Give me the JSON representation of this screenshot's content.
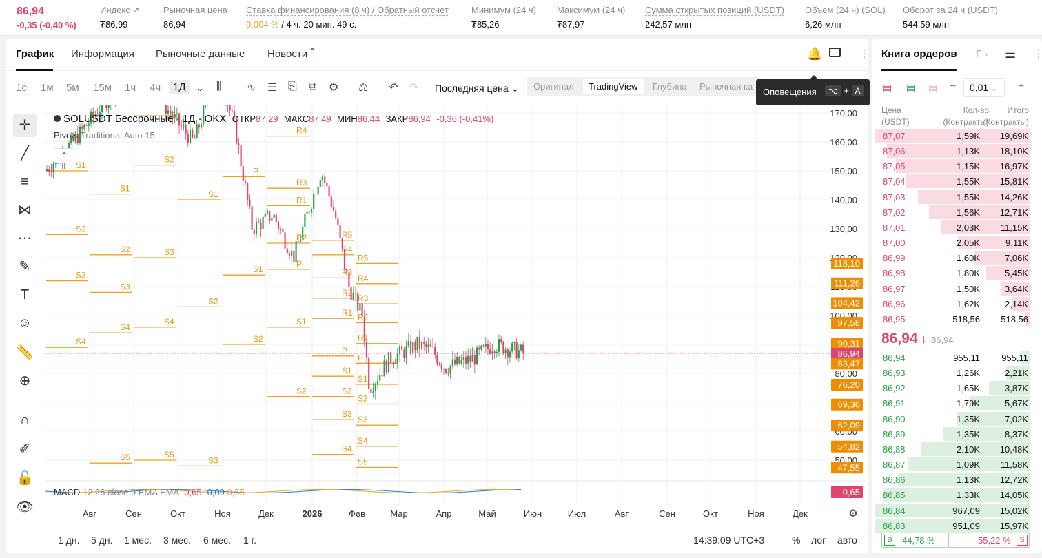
{
  "ticker": {
    "last_price": "86,94",
    "change": "-0,35 (-0,40 %)",
    "stats": [
      {
        "label": "Индекс",
        "value": "₮86,99",
        "icon": "external-link-icon"
      },
      {
        "label": "Рыночная цена",
        "value": "86,94"
      },
      {
        "label": "Ставка финансирования (8 ч) / Обратный отсчет",
        "value_accent": "0,004 %",
        "value": " / 4 ч. 20 мин. 49 с."
      },
      {
        "label": "Минимум (24 ч)",
        "value": "₮85,26"
      },
      {
        "label": "Максимум (24 ч)",
        "value": "₮87,97"
      },
      {
        "label": "Сумма открытых позиций (USDT)",
        "value": "242,57 млн"
      },
      {
        "label": "Объем (24 ч) (SOL)",
        "value": "6,26 млн"
      },
      {
        "label": "Оборот за 24 ч (USDT)",
        "value": "544,59 млн"
      }
    ]
  },
  "tabs": [
    "График",
    "Информация",
    "Рыночные данные",
    "Новости"
  ],
  "toolbar": {
    "timeframes": [
      "1с",
      "1м",
      "5м",
      "15м",
      "1ч",
      "4ч",
      "1Д"
    ],
    "active_timeframe": "1Д",
    "price_type": "Последняя цена",
    "views": [
      "Оригинал",
      "TradingView",
      "Глубина",
      "Рыночная ка"
    ],
    "active_view": "TradingView"
  },
  "tooltip": {
    "text": "Оповещения",
    "k1": "⌥",
    "plus": "+",
    "k2": "A"
  },
  "legend": {
    "symbol": "SOLUSDT Бессрочные · 1Д · OKX",
    "open_label": "ОТКР",
    "open": "87,29",
    "high_label": "МАКС",
    "high": "87,49",
    "low_label": "МИН",
    "low": "86,44",
    "close_label": "ЗАКР",
    "close": "86,94",
    "change": "-0,36 (-0,41%)"
  },
  "indicator": {
    "name": "Pivots",
    "params": "Traditional Auto 15"
  },
  "macd": {
    "name": "MACD",
    "params": "12 26 close 9 EMA EMA",
    "v1": "-0,65",
    "v2": "-0,09",
    "v3": "0,55"
  },
  "chart_data": {
    "type": "candlestick",
    "y_axis": [
      "170,00",
      "160,00",
      "150,00",
      "140,00",
      "130,00",
      "120,00",
      "110,00",
      "100,00",
      "90,00",
      "80,00",
      "70,00",
      "60,00",
      "50,00"
    ],
    "x_axis": [
      "Авг",
      "Сен",
      "Окт",
      "Ноя",
      "Дек",
      "2026",
      "Фев",
      "Мар",
      "Апр",
      "Май",
      "Июн",
      "Июл",
      "Авг",
      "Сен",
      "Окт",
      "Ноя",
      "Дек"
    ],
    "price_tags": [
      {
        "value": "118,10",
        "color": "#f08c00"
      },
      {
        "value": "111,26",
        "color": "#f08c00"
      },
      {
        "value": "104,42",
        "color": "#f08c00"
      },
      {
        "value": "97,58",
        "color": "#f08c00"
      },
      {
        "value": "90,31",
        "color": "#f08c00"
      },
      {
        "value": "86,94",
        "color": "#e0436c"
      },
      {
        "value": "83,47",
        "color": "#f08c00"
      },
      {
        "value": "76,20",
        "color": "#f08c00"
      },
      {
        "value": "69,36",
        "color": "#f08c00"
      },
      {
        "value": "62,09",
        "color": "#f08c00"
      },
      {
        "value": "54,82",
        "color": "#f08c00"
      },
      {
        "value": "47,55",
        "color": "#f08c00"
      }
    ],
    "macd_tag": {
      "value": "-0,65",
      "color": "#e0436c"
    },
    "pivot_levels": [
      {
        "label": "S1",
        "period": 0
      },
      {
        "label": "S2",
        "period": 0
      },
      {
        "label": "S3",
        "period": 0
      },
      {
        "label": "S4",
        "period": 0
      },
      {
        "label": "S1",
        "period": 1
      },
      {
        "label": "S2",
        "period": 1
      },
      {
        "label": "S3",
        "period": 1
      },
      {
        "label": "S4",
        "period": 1
      },
      {
        "label": "S5",
        "period": 1
      },
      {
        "label": "S1",
        "period": 2
      },
      {
        "label": "S2",
        "period": 2
      },
      {
        "label": "S3",
        "period": 2
      },
      {
        "label": "S4",
        "period": 2
      },
      {
        "label": "S5",
        "period": 2
      },
      {
        "label": "S1",
        "period": 3
      },
      {
        "label": "S2",
        "period": 3
      },
      {
        "label": "S3",
        "period": 3
      },
      {
        "label": "P",
        "period": 4
      },
      {
        "label": "S1",
        "period": 4
      },
      {
        "label": "S2",
        "period": 4
      },
      {
        "label": "R4",
        "period": 5
      },
      {
        "label": "R3",
        "period": 5
      },
      {
        "label": "R1",
        "period": 5
      },
      {
        "label": "R2",
        "period": 5
      },
      {
        "label": "P",
        "period": 5
      },
      {
        "label": "S1",
        "period": 5
      },
      {
        "label": "S2",
        "period": 5
      },
      {
        "label": "R5",
        "period": 6
      },
      {
        "label": "R4",
        "period": 6
      },
      {
        "label": "R3",
        "period": 6
      },
      {
        "label": "R2",
        "period": 6
      },
      {
        "label": "R1",
        "period": 6
      },
      {
        "label": "P",
        "period": 6
      },
      {
        "label": "S1",
        "period": 6
      },
      {
        "label": "S2",
        "period": 6
      },
      {
        "label": "S3",
        "period": 6
      },
      {
        "label": "S4",
        "period": 6
      },
      {
        "label": "R5",
        "period": 7
      },
      {
        "label": "R4",
        "period": 7
      },
      {
        "label": "R3",
        "period": 7
      },
      {
        "label": "R2",
        "period": 7
      },
      {
        "label": "R1",
        "period": 7
      },
      {
        "label": "P",
        "period": 7
      },
      {
        "label": "S1",
        "period": 7
      },
      {
        "label": "S2",
        "period": 7
      },
      {
        "label": "S3",
        "period": 7
      },
      {
        "label": "S4",
        "period": 7
      },
      {
        "label": "S5",
        "period": 7
      }
    ],
    "last_price": 86.94,
    "grid": true
  },
  "bottom": {
    "ranges": [
      "1 дн.",
      "5 дн.",
      "1 мес.",
      "3 мес.",
      "6 мес.",
      "1 г."
    ],
    "clock": "14:39:09 UTC+3",
    "pct": "%",
    "log": "лог",
    "auto": "авто"
  },
  "orderbook": {
    "title": "Книга ордеров",
    "tab2": "Г",
    "step": "0,01",
    "head_price": "Цена\n(USDT)",
    "head_qty": "Кол-во\n(Контракты)",
    "head_total": "Итого\n(Контракты)",
    "asks": [
      {
        "p": "87,07",
        "q": "1,59K",
        "t": "19,69K",
        "d": 1.0
      },
      {
        "p": "87,06",
        "q": "1,13K",
        "t": "18,10K",
        "d": 0.92
      },
      {
        "p": "87,05",
        "q": "1,15K",
        "t": "16,97K",
        "d": 0.86
      },
      {
        "p": "87,04",
        "q": "1,55K",
        "t": "15,81K",
        "d": 0.8
      },
      {
        "p": "87,03",
        "q": "1,55K",
        "t": "14,26K",
        "d": 0.72
      },
      {
        "p": "87,02",
        "q": "1,56K",
        "t": "12,71K",
        "d": 0.65
      },
      {
        "p": "87,01",
        "q": "2,03K",
        "t": "11,15K",
        "d": 0.57
      },
      {
        "p": "87,00",
        "q": "2,05K",
        "t": "9,11K",
        "d": 0.46
      },
      {
        "p": "86,99",
        "q": "1,60K",
        "t": "7,06K",
        "d": 0.36
      },
      {
        "p": "86,98",
        "q": "1,80K",
        "t": "5,45K",
        "d": 0.28
      },
      {
        "p": "86,97",
        "q": "1,50K",
        "t": "3,64K",
        "d": 0.18
      },
      {
        "p": "86,96",
        "q": "1,62K",
        "t": "2,14K",
        "d": 0.11
      },
      {
        "p": "86,95",
        "q": "518,56",
        "t": "518,56",
        "d": 0.03
      }
    ],
    "mid_price": "86,94",
    "mid_sub": "86,94",
    "bids": [
      {
        "p": "86,94",
        "q": "955,11",
        "t": "955,11",
        "d": 0.06
      },
      {
        "p": "86,93",
        "q": "1,26K",
        "t": "2,21K",
        "d": 0.15
      },
      {
        "p": "86,92",
        "q": "1,65K",
        "t": "3,87K",
        "d": 0.26
      },
      {
        "p": "86,91",
        "q": "1,79K",
        "t": "5,67K",
        "d": 0.38
      },
      {
        "p": "86,90",
        "q": "1,35K",
        "t": "7,02K",
        "d": 0.47
      },
      {
        "p": "86,89",
        "q": "1,35K",
        "t": "8,37K",
        "d": 0.56
      },
      {
        "p": "86,88",
        "q": "2,10K",
        "t": "10,48K",
        "d": 0.7
      },
      {
        "p": "86,87",
        "q": "1,09K",
        "t": "11,58K",
        "d": 0.78
      },
      {
        "p": "86,86",
        "q": "1,13K",
        "t": "12,72K",
        "d": 0.85
      },
      {
        "p": "86,85",
        "q": "1,33K",
        "t": "14,05K",
        "d": 0.94
      },
      {
        "p": "86,84",
        "q": "967,09",
        "t": "15,02K",
        "d": 1.0
      },
      {
        "p": "86,83",
        "q": "951,09",
        "t": "15,97K",
        "d": 1.0
      }
    ],
    "buy_label": "B",
    "buy_pct": "44,78 %",
    "sell_pct": "55,22 %",
    "sell_label": "S"
  },
  "colors": {
    "down": "#e0436c",
    "up": "#2aa04a",
    "pivot": "#f0a020"
  }
}
